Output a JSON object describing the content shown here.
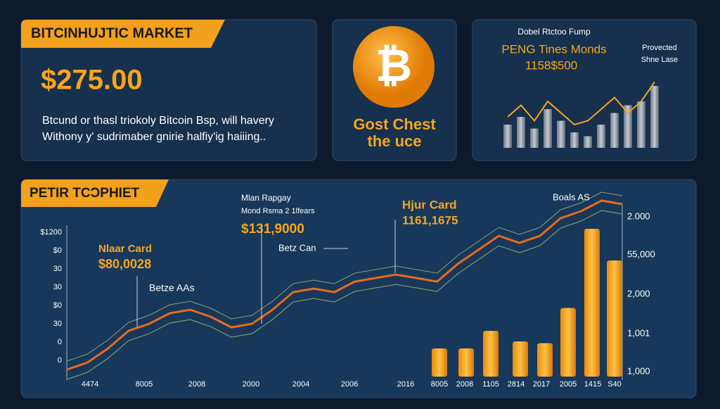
{
  "header": {
    "title": "BITCINHUJTIC MARKET",
    "price": "$275.00",
    "description": [
      "Btcund or thasl triokoly Bitcoin Bsp, will havery",
      "Withony y' sudrimaber gnirie halfiy'ig haiiing.."
    ]
  },
  "coin_panel": {
    "caption": [
      "Gost Chest",
      "the uce"
    ]
  },
  "mini_panel": {
    "title": "Dobel Rtctoo Fump",
    "subtitle": "PENG Tines Monds",
    "value": "1158$500",
    "note": [
      "Provected",
      "Shne Lase"
    ],
    "bars": [
      30,
      40,
      25,
      50,
      35,
      20,
      15,
      30,
      45,
      55,
      60,
      80
    ],
    "line": [
      40,
      55,
      35,
      60,
      45,
      30,
      35,
      50,
      65,
      45,
      60,
      85
    ],
    "ylim": [
      0,
      100
    ]
  },
  "main_panel": {
    "title": "PETIR TCƆPHIET",
    "annotations": [
      {
        "lines": [
          "Nlaar Card",
          "$80,0028"
        ]
      },
      {
        "lines": [
          "Betze AAs"
        ]
      },
      {
        "lines": [
          "Mlan Rapgay",
          "Mond Rsma 2 1lfears",
          "$131,9000"
        ]
      },
      {
        "lines": [
          "Betz Can"
        ]
      },
      {
        "lines": [
          "Hjur Card",
          "1161,1675"
        ]
      },
      {
        "lines": [
          "Boals AS"
        ]
      }
    ],
    "x_labels": [
      "4474",
      "8005",
      "2008",
      "2000",
      "2004",
      "2006",
      "2016",
      "8005",
      "2008",
      "1105",
      "2814",
      "2017",
      "2005",
      "1415",
      "S40"
    ],
    "left_labels": [
      "$1200",
      "$0",
      "30",
      "30",
      "$0",
      "30",
      "0",
      "0"
    ],
    "right_labels": [
      "2.000",
      "55,000",
      "2,000",
      "1,001",
      "1,000"
    ],
    "line": [
      4,
      8,
      16,
      26,
      30,
      36,
      38,
      34,
      28,
      30,
      38,
      48,
      50,
      48,
      54,
      56,
      58,
      56,
      54,
      64,
      72,
      80,
      76,
      80,
      90,
      94,
      100,
      98
    ],
    "bars": [
      16,
      16,
      26,
      20,
      19,
      39,
      84,
      66
    ],
    "ylim": [
      0,
      100
    ]
  }
}
